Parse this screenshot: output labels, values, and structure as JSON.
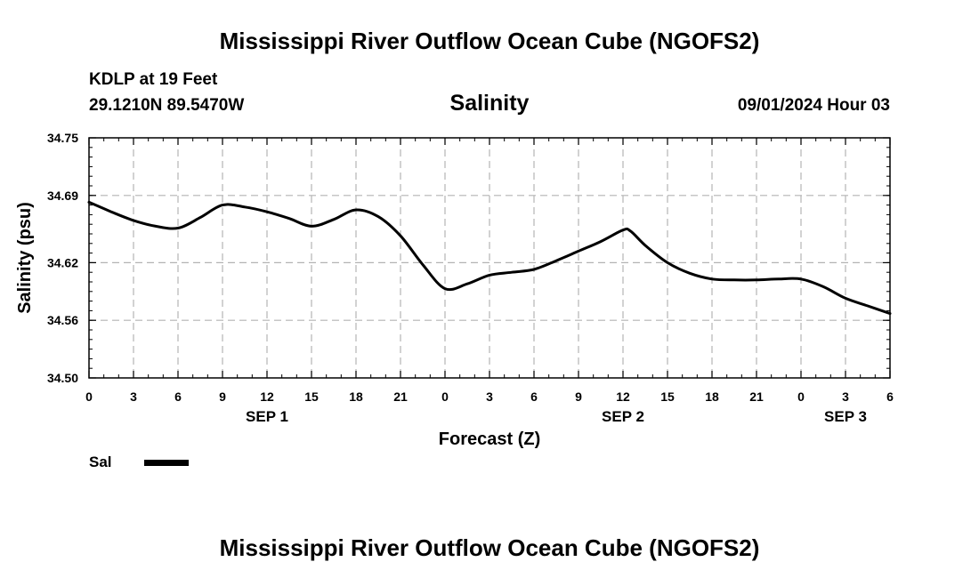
{
  "header": {
    "title": "Mississippi River Outflow Ocean Cube (NGOFS2)",
    "station": "KDLP at 19 Feet",
    "coords": "29.1210N  89.5470W",
    "subtitle": "Salinity",
    "datetime": "09/01/2024 Hour 03"
  },
  "footer": {
    "title": "Mississippi River Outflow Ocean Cube (NGOFS2)"
  },
  "chart_data": {
    "type": "line",
    "title": "Salinity",
    "xlabel": "Forecast (Z)",
    "ylabel": "Salinity (psu)",
    "xlim": [
      0,
      54
    ],
    "ylim": [
      34.5,
      34.75
    ],
    "y_ticks": [
      34.5,
      34.56,
      34.62,
      34.69,
      34.75
    ],
    "y_tick_labels": [
      "34.50",
      "34.56",
      "34.62",
      "34.69",
      "34.75"
    ],
    "x_ticks": [
      0,
      3,
      6,
      9,
      12,
      15,
      18,
      21,
      24,
      27,
      30,
      33,
      36,
      39,
      42,
      45,
      48,
      51,
      54
    ],
    "x_tick_labels": [
      "0",
      "3",
      "6",
      "9",
      "12",
      "15",
      "18",
      "21",
      "0",
      "3",
      "6",
      "9",
      "12",
      "15",
      "18",
      "21",
      "0",
      "3",
      "6"
    ],
    "day_labels": [
      {
        "x": 12,
        "label": "SEP 1"
      },
      {
        "x": 36,
        "label": "SEP 2"
      },
      {
        "x": 51,
        "label": "SEP 3"
      }
    ],
    "grid": true,
    "legend": {
      "position": "bottom-left",
      "entries": [
        {
          "name": "Sal",
          "color": "#000000"
        }
      ]
    },
    "series": [
      {
        "name": "Sal",
        "color": "#000000",
        "x": [
          0,
          1.5,
          3,
          4.5,
          6,
          7.5,
          9,
          10.5,
          12,
          13.5,
          15,
          16.5,
          18,
          19.5,
          21,
          22.5,
          24,
          25.5,
          27,
          28.5,
          30,
          31.5,
          33,
          34.5,
          36,
          36.5,
          37.5,
          39,
          40.5,
          42,
          43.5,
          45,
          46.5,
          48,
          49.5,
          51,
          52.5,
          54
        ],
        "values": [
          34.683,
          34.673,
          34.664,
          34.658,
          34.656,
          34.667,
          34.68,
          34.678,
          34.673,
          34.666,
          34.658,
          34.665,
          34.675,
          34.668,
          34.648,
          34.618,
          34.593,
          34.598,
          34.607,
          34.61,
          34.613,
          34.622,
          34.632,
          34.642,
          34.654,
          34.653,
          34.638,
          34.62,
          34.609,
          34.603,
          34.602,
          34.602,
          34.603,
          34.603,
          34.595,
          34.583,
          34.575,
          34.567
        ]
      }
    ]
  }
}
